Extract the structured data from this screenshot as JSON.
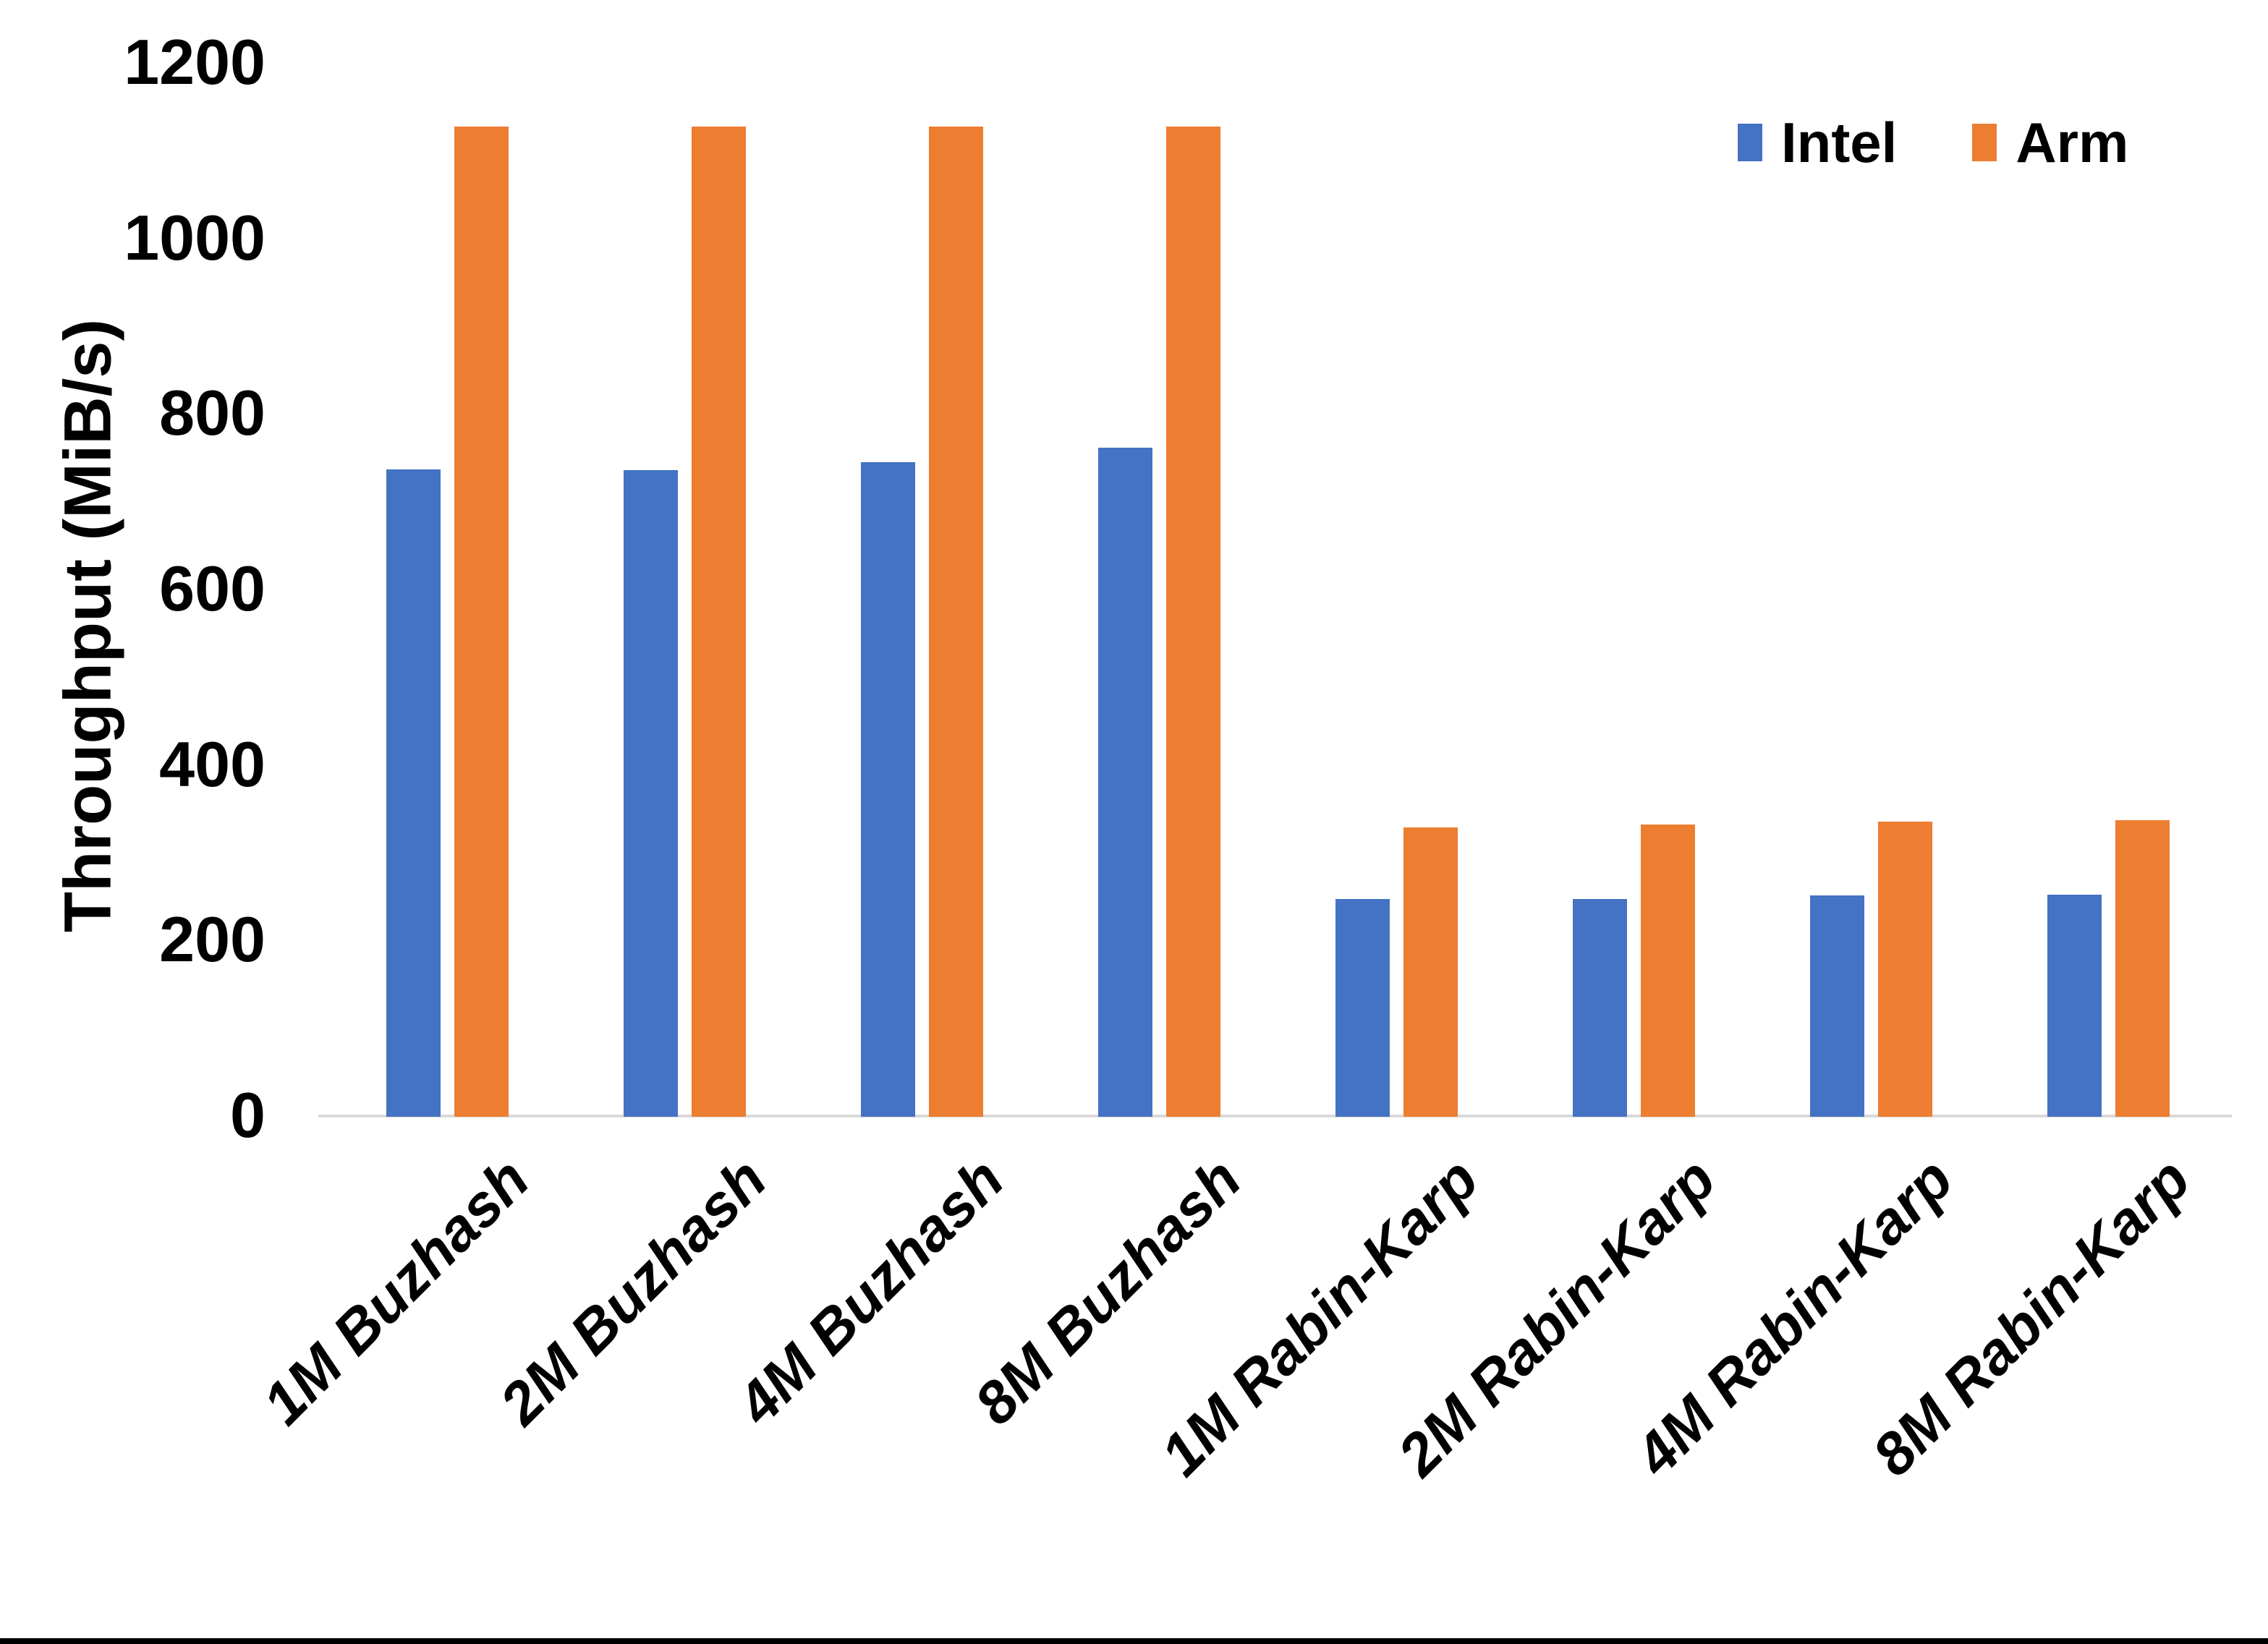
{
  "chart_data": {
    "type": "bar",
    "title": "",
    "xlabel": "",
    "ylabel": "Throughput (MiB/s)",
    "categories": [
      "1M Buzhash",
      "2M Buzhash",
      "4M Buzhash",
      "8M Buzhash",
      "1M Rabin-Karp",
      "2M Rabin-Karp",
      "4M Rabin-Karp",
      "8M Rabin-Karp"
    ],
    "series": [
      {
        "name": "Intel",
        "color": "#4472C4",
        "values": [
          738,
          737,
          746,
          762,
          248,
          248,
          252,
          253
        ]
      },
      {
        "name": "Arm",
        "color": "#ED7D31",
        "values": [
          1128,
          1128,
          1128,
          1128,
          330,
          333,
          336,
          338
        ]
      }
    ],
    "ylim": [
      0,
      1200
    ],
    "yticks": [
      0,
      200,
      400,
      600,
      800,
      1000,
      1200
    ],
    "grid": false,
    "legend_position": "top-right",
    "colors": {
      "axis_line": "#D9D9D9",
      "text": "#000000",
      "background": "#FFFFFF",
      "bottom_border": "#000000"
    }
  }
}
